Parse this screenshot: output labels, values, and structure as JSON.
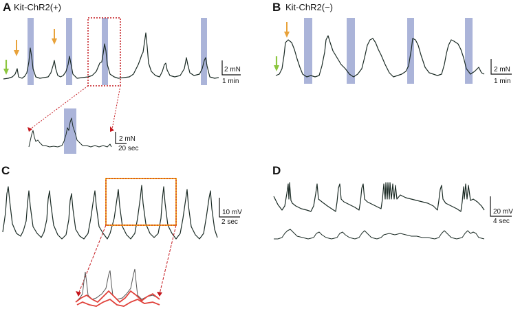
{
  "panels": {
    "A": {
      "letter": "A",
      "title": "Kit-ChR2(+)",
      "scale_y": "2 mN",
      "scale_x": "1 min",
      "inset_scale_y": "2 mN",
      "inset_scale_x": "20 sec"
    },
    "B": {
      "letter": "B",
      "title": "Kit-ChR2(−)",
      "scale_y": "2 mN",
      "scale_x": "1 min"
    },
    "C": {
      "letter": "C",
      "scale_y": "10 mV",
      "scale_x": "2 sec"
    },
    "D": {
      "letter": "D",
      "scale_y": "20 mV",
      "scale_x": "4 sec"
    }
  },
  "colors": {
    "trace": "#1a2a24",
    "stimulation_band": "#8f9bcc",
    "arrow_green": "#8cc63f",
    "arrow_orange": "#e8a23a",
    "zoom_box_red": "#c4161c",
    "zoom_box_orange": "#f0a020",
    "overlay_red": "#e0413a"
  },
  "icons": [
    "green-arrow-icon",
    "orange-arrow-icon"
  ]
}
